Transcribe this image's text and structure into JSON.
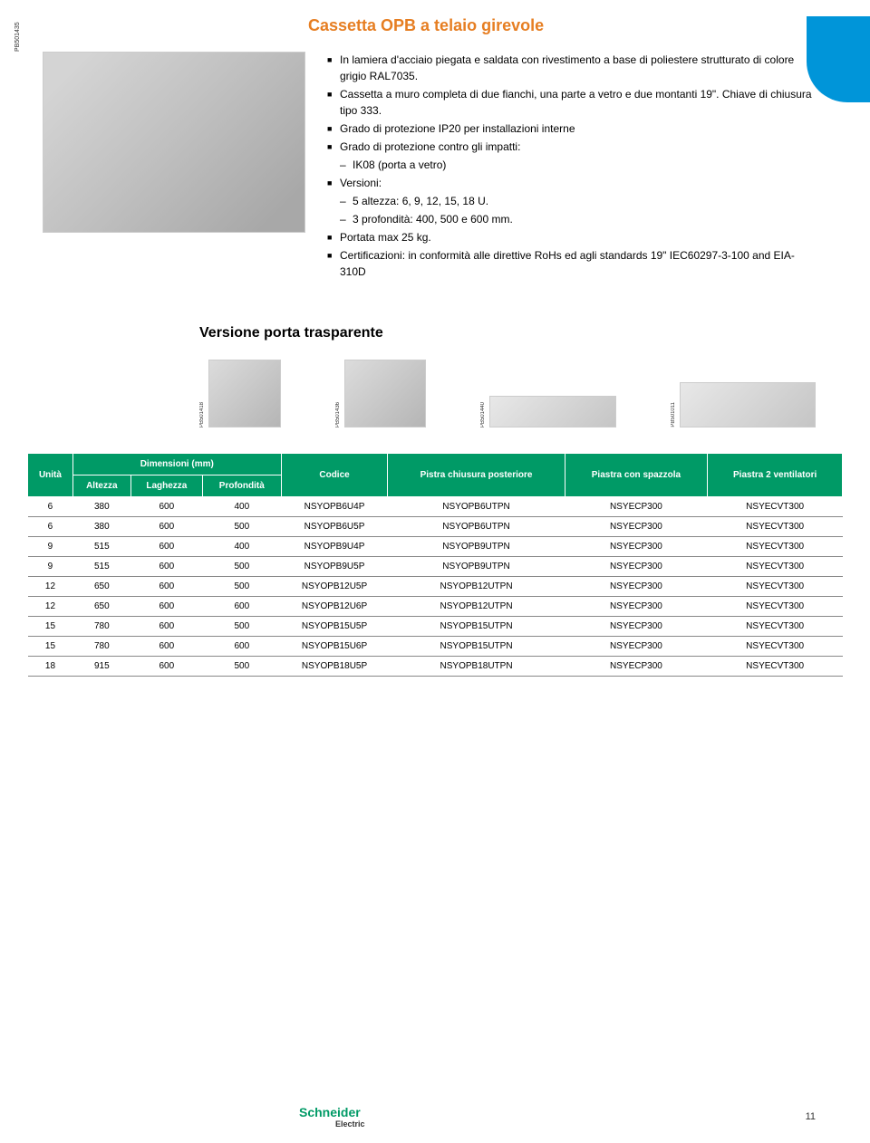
{
  "title": "Cassetta OPB a telaio girevole",
  "hero_label": "PB501435",
  "bullets": [
    {
      "type": "main",
      "text": "In lamiera d'acciaio piegata e saldata con rivestimento a base di poliestere strutturato di colore grigio RAL7035."
    },
    {
      "type": "main",
      "text": "Cassetta a muro completa di due fianchi, una parte a vetro e due montanti 19\". Chiave di chiusura tipo 333."
    },
    {
      "type": "main",
      "text": "Grado di protezione IP20 per installazioni interne"
    },
    {
      "type": "main",
      "text": "Grado di protezione contro gli impatti:"
    },
    {
      "type": "sub",
      "text": "IK08 (porta a vetro)"
    },
    {
      "type": "main",
      "text": "Versioni:"
    },
    {
      "type": "sub",
      "text": "5 altezza: 6, 9, 12, 15, 18 U."
    },
    {
      "type": "sub",
      "text": "3 profondità: 400, 500 e 600 mm."
    },
    {
      "type": "main",
      "text": "Portata max 25 kg."
    },
    {
      "type": "main",
      "text": "Certificazioni: in conformità alle direttive RoHs ed agli standards 19\" IEC60297-3-100 and EIA-310D"
    }
  ],
  "section_heading": "Versione porta trasparente",
  "thumbs": [
    {
      "label": "PB501418",
      "cls": "t1"
    },
    {
      "label": "PB501436",
      "cls": "t2"
    },
    {
      "label": "PB501440",
      "cls": "t3"
    },
    {
      "label": "PB501011",
      "cls": "t4"
    }
  ],
  "table": {
    "header_colors": {
      "bg": "#009a66",
      "fg": "#ffffff"
    },
    "top_headers": {
      "unita": "Unità",
      "dim": "Dimensioni (mm)",
      "codice": "Codice",
      "pistra": "Pistra chiusura posteriore",
      "spazzola": "Piastra con spazzola",
      "ventilatori": "Piastra 2 ventilatori"
    },
    "dim_sub": [
      "Altezza",
      "Laghezza",
      "Profondità"
    ],
    "rows": [
      [
        "6",
        "380",
        "600",
        "400",
        "NSYOPB6U4P",
        "NSYOPB6UTPN",
        "NSYECP300",
        "NSYECVT300"
      ],
      [
        "6",
        "380",
        "600",
        "500",
        "NSYOPB6U5P",
        "NSYOPB6UTPN",
        "NSYECP300",
        "NSYECVT300"
      ],
      [
        "9",
        "515",
        "600",
        "400",
        "NSYOPB9U4P",
        "NSYOPB9UTPN",
        "NSYECP300",
        "NSYECVT300"
      ],
      [
        "9",
        "515",
        "600",
        "500",
        "NSYOPB9U5P",
        "NSYOPB9UTPN",
        "NSYECP300",
        "NSYECVT300"
      ],
      [
        "12",
        "650",
        "600",
        "500",
        "NSYOPB12U5P",
        "NSYOPB12UTPN",
        "NSYECP300",
        "NSYECVT300"
      ],
      [
        "12",
        "650",
        "600",
        "600",
        "NSYOPB12U6P",
        "NSYOPB12UTPN",
        "NSYECP300",
        "NSYECVT300"
      ],
      [
        "15",
        "780",
        "600",
        "500",
        "NSYOPB15U5P",
        "NSYOPB15UTPN",
        "NSYECP300",
        "NSYECVT300"
      ],
      [
        "15",
        "780",
        "600",
        "600",
        "NSYOPB15U6P",
        "NSYOPB15UTPN",
        "NSYECP300",
        "NSYECVT300"
      ],
      [
        "18",
        "915",
        "600",
        "500",
        "NSYOPB18U5P",
        "NSYOPB18UTPN",
        "NSYECP300",
        "NSYECVT300"
      ]
    ]
  },
  "logo": {
    "main": "Schneider",
    "sub": "Electric"
  },
  "page_num": "11"
}
